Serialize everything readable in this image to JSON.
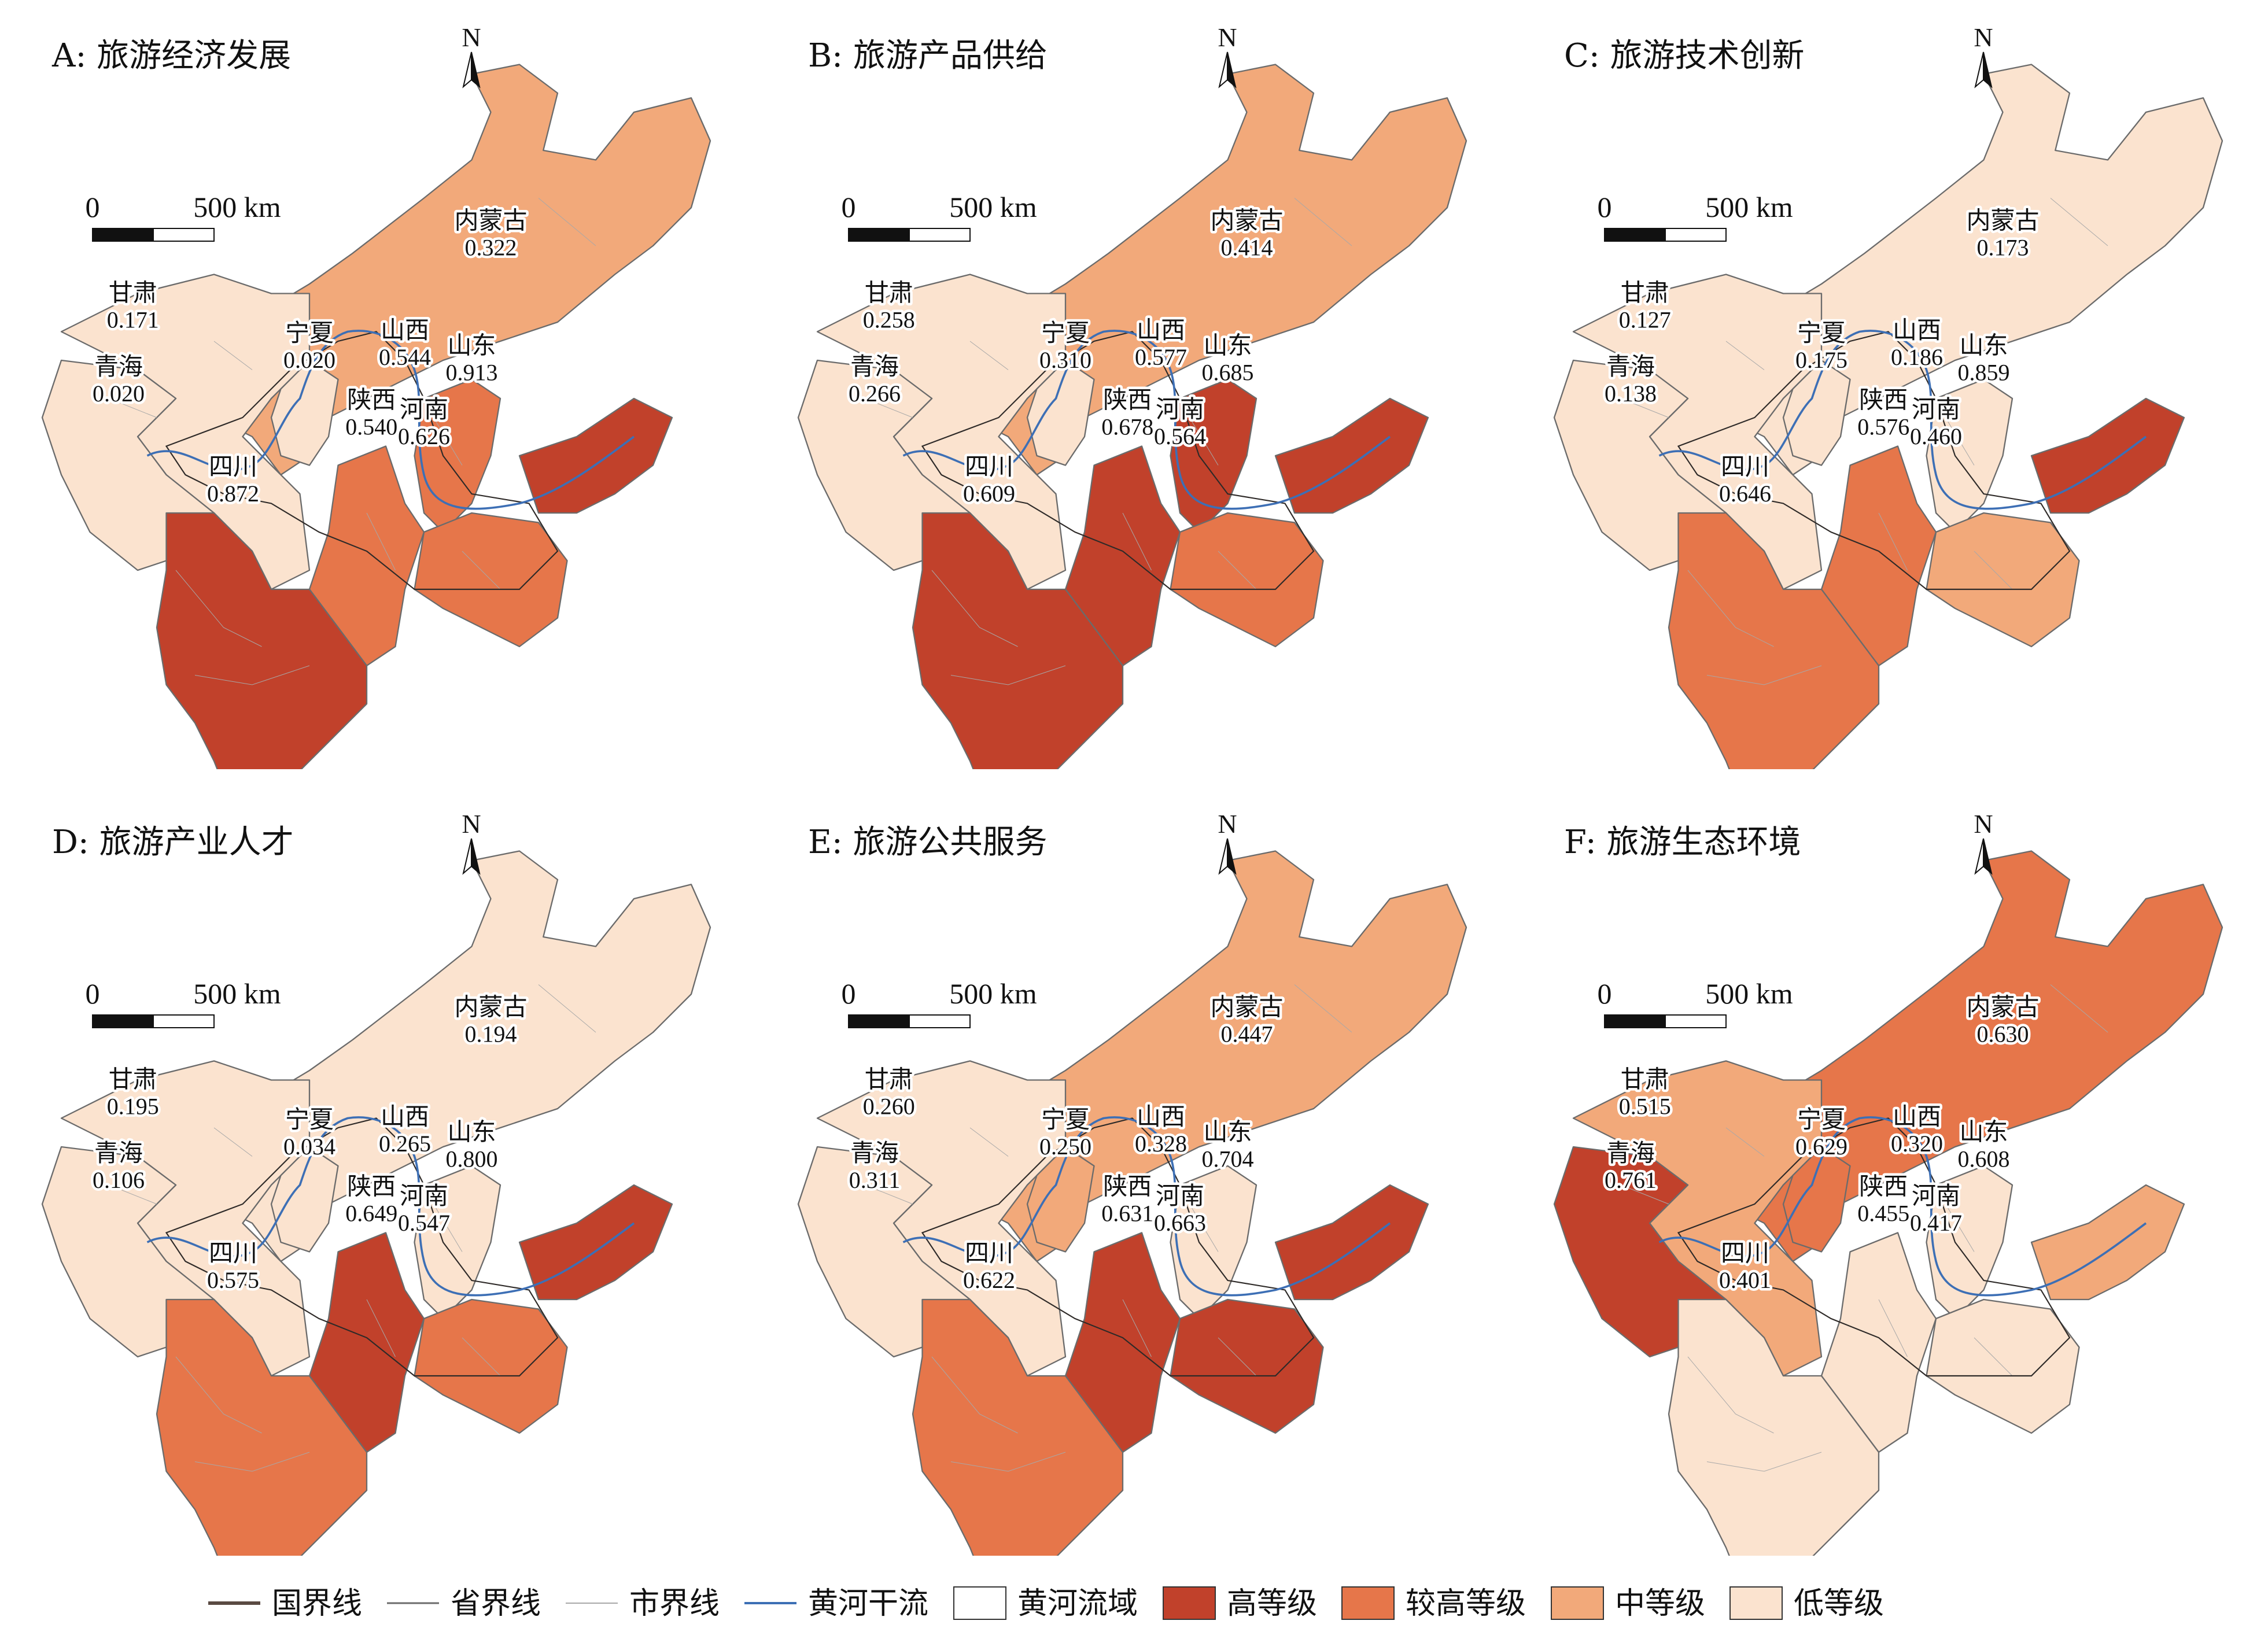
{
  "colors": {
    "high": "#c1412b",
    "upper": "#e6764a",
    "mid": "#f2a97a",
    "low": "#fbe3cf",
    "basin_fill": "#ffffff",
    "river": "#3d6fb5",
    "national_border": "#5a4a42",
    "province_border": "#6b6b6b",
    "city_border": "#a8a8a8"
  },
  "panels": [
    {
      "title": "A: 旅游经济发展",
      "provinces": {
        "neimenggu": {
          "name": "内蒙古",
          "value": "0.322",
          "level": "mid"
        },
        "gansu": {
          "name": "甘肃",
          "value": "0.171",
          "level": "low"
        },
        "ningxia": {
          "name": "宁夏",
          "value": "0.020",
          "level": "low"
        },
        "qinghai": {
          "name": "青海",
          "value": "0.020",
          "level": "low"
        },
        "shanxi": {
          "name": "山西",
          "value": "0.544",
          "level": "upper"
        },
        "shandong": {
          "name": "山东",
          "value": "0.913",
          "level": "high"
        },
        "shaanxi": {
          "name": "陕西",
          "value": "0.540",
          "level": "upper"
        },
        "henan": {
          "name": "河南",
          "value": "0.626",
          "level": "upper"
        },
        "sichuan": {
          "name": "四川",
          "value": "0.872",
          "level": "high"
        }
      }
    },
    {
      "title": "B: 旅游产品供给",
      "provinces": {
        "neimenggu": {
          "name": "内蒙古",
          "value": "0.414",
          "level": "mid"
        },
        "gansu": {
          "name": "甘肃",
          "value": "0.258",
          "level": "low"
        },
        "ningxia": {
          "name": "宁夏",
          "value": "0.310",
          "level": "low"
        },
        "qinghai": {
          "name": "青海",
          "value": "0.266",
          "level": "low"
        },
        "shanxi": {
          "name": "山西",
          "value": "0.577",
          "level": "high"
        },
        "shandong": {
          "name": "山东",
          "value": "0.685",
          "level": "high"
        },
        "shaanxi": {
          "name": "陕西",
          "value": "0.678",
          "level": "high"
        },
        "henan": {
          "name": "河南",
          "value": "0.564",
          "level": "upper"
        },
        "sichuan": {
          "name": "四川",
          "value": "0.609",
          "level": "high"
        }
      }
    },
    {
      "title": "C: 旅游技术创新",
      "provinces": {
        "neimenggu": {
          "name": "内蒙古",
          "value": "0.173",
          "level": "low"
        },
        "gansu": {
          "name": "甘肃",
          "value": "0.127",
          "level": "low"
        },
        "ningxia": {
          "name": "宁夏",
          "value": "0.175",
          "level": "low"
        },
        "qinghai": {
          "name": "青海",
          "value": "0.138",
          "level": "low"
        },
        "shanxi": {
          "name": "山西",
          "value": "0.186",
          "level": "low"
        },
        "shandong": {
          "name": "山东",
          "value": "0.859",
          "level": "high"
        },
        "shaanxi": {
          "name": "陕西",
          "value": "0.576",
          "level": "upper"
        },
        "henan": {
          "name": "河南",
          "value": "0.460",
          "level": "mid"
        },
        "sichuan": {
          "name": "四川",
          "value": "0.646",
          "level": "upper"
        }
      }
    },
    {
      "title": "D: 旅游产业人才",
      "provinces": {
        "neimenggu": {
          "name": "内蒙古",
          "value": "0.194",
          "level": "low"
        },
        "gansu": {
          "name": "甘肃",
          "value": "0.195",
          "level": "low"
        },
        "ningxia": {
          "name": "宁夏",
          "value": "0.034",
          "level": "low"
        },
        "qinghai": {
          "name": "青海",
          "value": "0.106",
          "level": "low"
        },
        "shanxi": {
          "name": "山西",
          "value": "0.265",
          "level": "low"
        },
        "shandong": {
          "name": "山东",
          "value": "0.800",
          "level": "high"
        },
        "shaanxi": {
          "name": "陕西",
          "value": "0.649",
          "level": "high"
        },
        "henan": {
          "name": "河南",
          "value": "0.547",
          "level": "upper"
        },
        "sichuan": {
          "name": "四川",
          "value": "0.575",
          "level": "upper"
        }
      }
    },
    {
      "title": "E: 旅游公共服务",
      "provinces": {
        "neimenggu": {
          "name": "内蒙古",
          "value": "0.447",
          "level": "mid"
        },
        "gansu": {
          "name": "甘肃",
          "value": "0.260",
          "level": "low"
        },
        "ningxia": {
          "name": "宁夏",
          "value": "0.250",
          "level": "mid"
        },
        "qinghai": {
          "name": "青海",
          "value": "0.311",
          "level": "low"
        },
        "shanxi": {
          "name": "山西",
          "value": "0.328",
          "level": "low"
        },
        "shandong": {
          "name": "山东",
          "value": "0.704",
          "level": "high"
        },
        "shaanxi": {
          "name": "陕西",
          "value": "0.631",
          "level": "high"
        },
        "henan": {
          "name": "河南",
          "value": "0.663",
          "level": "high"
        },
        "sichuan": {
          "name": "四川",
          "value": "0.622",
          "level": "upper"
        }
      }
    },
    {
      "title": "F: 旅游生态环境",
      "provinces": {
        "neimenggu": {
          "name": "内蒙古",
          "value": "0.630",
          "level": "upper"
        },
        "gansu": {
          "name": "甘肃",
          "value": "0.515",
          "level": "mid"
        },
        "ningxia": {
          "name": "宁夏",
          "value": "0.629",
          "level": "upper"
        },
        "qinghai": {
          "name": "青海",
          "value": "0.761",
          "level": "high"
        },
        "shanxi": {
          "name": "山西",
          "value": "0.320",
          "level": "low"
        },
        "shandong": {
          "name": "山东",
          "value": "0.608",
          "level": "mid"
        },
        "shaanxi": {
          "name": "陕西",
          "value": "0.455",
          "level": "low"
        },
        "henan": {
          "name": "河南",
          "value": "0.417",
          "level": "low"
        },
        "sichuan": {
          "name": "四川",
          "value": "0.401",
          "level": "low"
        }
      }
    }
  ],
  "north_label": "N",
  "scale": {
    "zero": "0",
    "distance": "500 km"
  },
  "legend": [
    {
      "label": "国界线",
      "type": "line",
      "style": "national"
    },
    {
      "label": "省界线",
      "type": "line",
      "style": "province"
    },
    {
      "label": "市界线",
      "type": "line",
      "style": "city"
    },
    {
      "label": "黄河干流",
      "type": "line",
      "style": "river"
    },
    {
      "label": "黄河流域",
      "type": "box",
      "fill": "basin_fill"
    },
    {
      "label": "高等级",
      "type": "box",
      "fill": "high"
    },
    {
      "label": "较高等级",
      "type": "box",
      "fill": "upper"
    },
    {
      "label": "中等级",
      "type": "box",
      "fill": "mid"
    },
    {
      "label": "低等级",
      "type": "box",
      "fill": "low"
    }
  ]
}
